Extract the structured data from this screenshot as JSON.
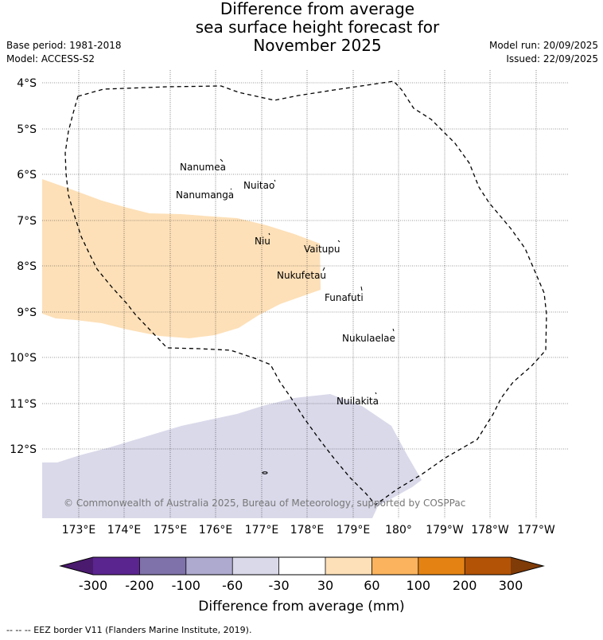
{
  "title": {
    "line1": "Difference from average",
    "line2": "sea surface height forecast for",
    "line3": "November 2025"
  },
  "meta": {
    "base_period": "Base period: 1981-2018",
    "model": "Model: ACCESS-S2",
    "model_run": "Model run: 20/09/2025",
    "issued": "Issued: 22/09/2025"
  },
  "map": {
    "lat_labels": [
      "4°S",
      "5°S",
      "6°S",
      "7°S",
      "8°S",
      "9°S",
      "10°S",
      "11°S",
      "12°S"
    ],
    "lon_labels": [
      "173°E",
      "174°E",
      "175°E",
      "176°E",
      "177°E",
      "178°E",
      "179°E",
      "180°",
      "179°W",
      "178°W",
      "177°W"
    ],
    "islands": [
      "Nanumea",
      "Nuitao",
      "Nanumanga",
      "Niu",
      "Vaitupu",
      "Nukufetau",
      "Funafuti",
      "Nukulaelae",
      "Nuilakita"
    ],
    "copyright": "© Commonwealth of Australia 2025, Bureau of Meteorology, supported by COSPPac",
    "colors": {
      "positive_30_60": "#fde0b8",
      "negative_30_60": "#d9d9ea",
      "eez_border": "#000000"
    }
  },
  "colorbar": {
    "ticks": [
      "-300",
      "-200",
      "-100",
      "-60",
      "-30",
      "30",
      "60",
      "100",
      "200",
      "300"
    ],
    "colors": [
      "#4a1a6e",
      "#5b2590",
      "#7f72aa",
      "#aeaacf",
      "#d9d9ea",
      "#ffffff",
      "#fde0b8",
      "#fbb35d",
      "#e48313",
      "#b35306",
      "#7f3b08"
    ],
    "label": "Difference from average (mm)"
  },
  "footnote": "--  --  -- EEZ border V11 (Flanders Marine Institute, 2019)."
}
